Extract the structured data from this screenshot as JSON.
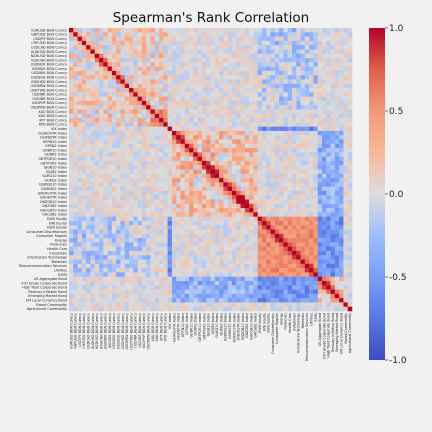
{
  "chart_data": {
    "type": "heatmap",
    "title": "Spearman's Rank Correlation",
    "labels": [
      "EURUSD BGN Curncy",
      "GBPUSD BGN Curncy",
      "USDJPY BGN Curncy",
      "CHFUSD BGN Curncy",
      "USDCAD BGN Curncy",
      "AUDUSD BGN Curncy",
      "NZDUSD BGN Curncy",
      "USDCNH BGN Curncy",
      "USDNOK BGN Curncy",
      "USDSEK BGN Curncy",
      "USDDKK BGN Curncy",
      "USDSGD BGN Curncy",
      "USDHKD BGN Curncy",
      "USDKRW BGN Curncy",
      "USDTWD BGN Curncy",
      "USDINR BGN Curncy",
      "USDIDR BGN Curncy",
      "USDPHP BGN Curncy",
      "USDMXN BGN Curncy",
      "XAU BGN Curncy",
      "XAG BGN Curncy",
      "XPT BGN Curncy",
      "XPD BGN Curncy",
      "VIX Index",
      "GCAN10YR Index",
      "GCAN2YR Index",
      "GFRN10 Index",
      "GFRN2 Index",
      "GDBR10 Index",
      "GDBR2 Index",
      "GBTPGR10 Index",
      "GBTPGR2 Index",
      "GJGB10 Index",
      "GJGB2 Index",
      "GUKG10 Index",
      "GUKG2 Index",
      "GSWISS10 Index",
      "GSWISS2 Index",
      "GNOR10YR Index",
      "GNOR2YR Index",
      "GNZGB10 Index",
      "GNZGB2 Index",
      "GACGB10 Index",
      "GACGB2 Index",
      "EWG Equity",
      "EWJ Equity",
      "EWU Equity",
      "Consumer Discretionary",
      "Consumer Staples",
      "Energy",
      "Financials",
      "Health Care",
      "Industrials",
      "Information Technology",
      "Materials",
      "Telecommunication Services",
      "Utilities",
      "REITs",
      "US Aggregate Bond",
      "Int'l Grade Corporate Bond",
      "High Yield Corporate Bond",
      "Treasury Inflation Bond",
      "Emerging Market Bond",
      "EM Local Currency Bond",
      "Broad Commodity",
      "Agricultural Commodity"
    ],
    "value_range": [
      -1.0,
      1.0
    ],
    "colormap": "coolwarm",
    "colorbar_ticks": [
      "1.0",
      "0.5",
      "0.0",
      "-0.5",
      "-1.0"
    ],
    "notes": "Symmetric correlation matrix with unit diagonal; visible clusters: currencies, precious metals, yields, equities/sectors, bonds."
  }
}
